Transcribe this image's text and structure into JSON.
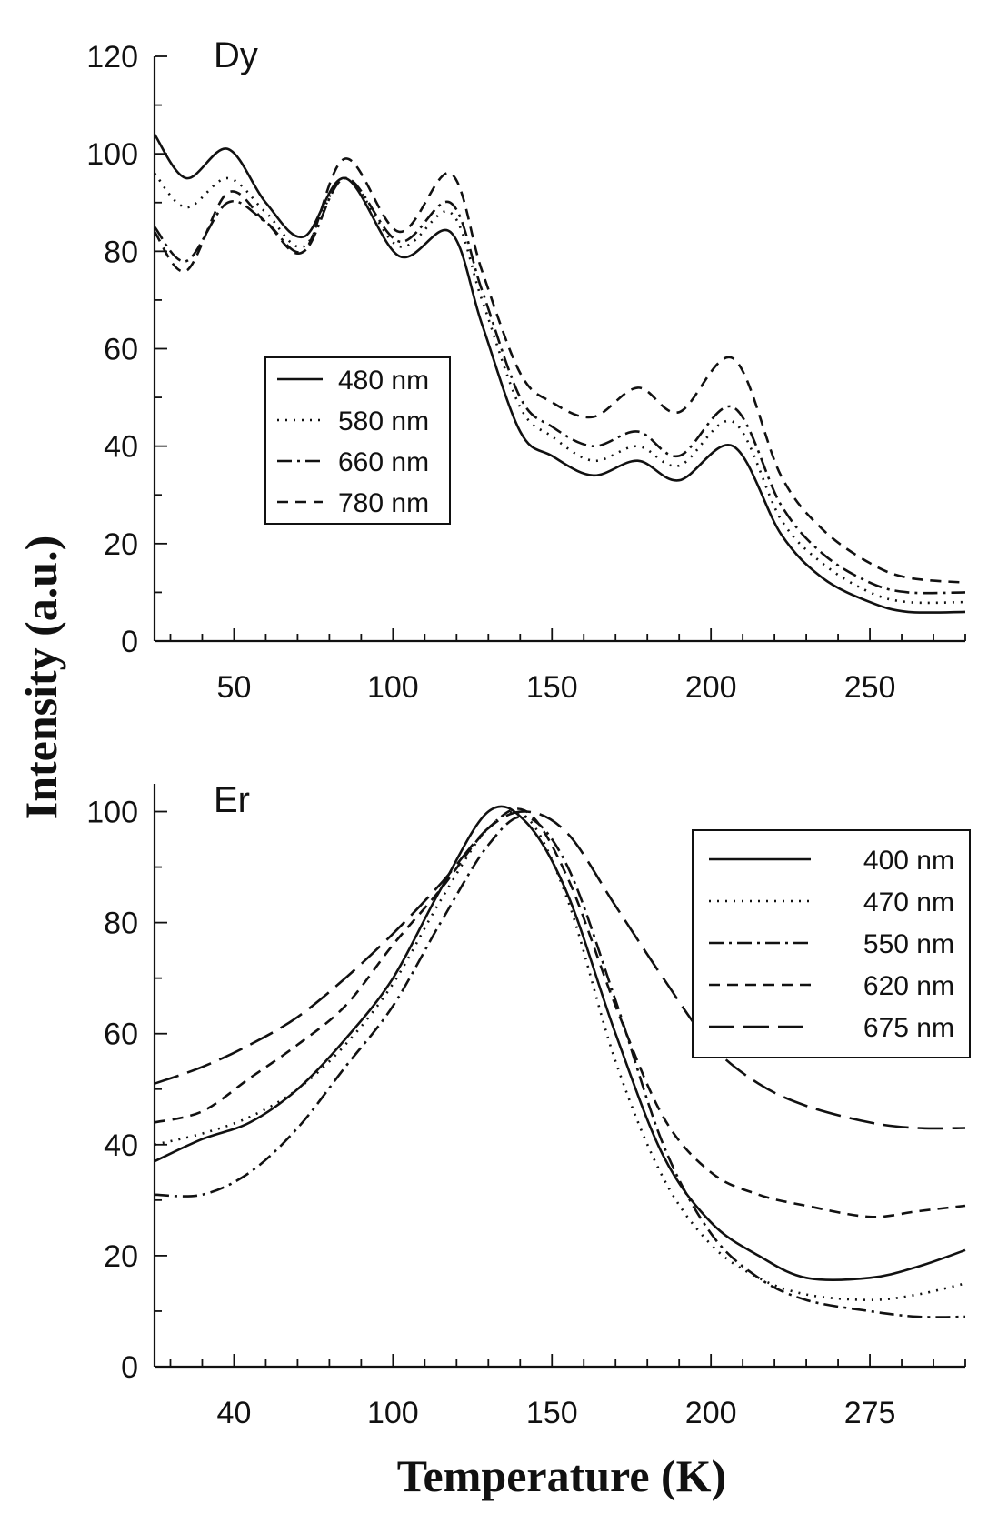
{
  "figure": {
    "ylabel": "Intensity (a.u.)",
    "xlabel": "Temperature (K)"
  },
  "chart_data": [
    {
      "type": "line",
      "title": "Dy",
      "xlabel": "Temperature (K)",
      "ylabel": "Intensity (a.u.)",
      "xlim": [
        25,
        280
      ],
      "ylim": [
        0,
        120
      ],
      "x_ticks": [
        "50",
        "100",
        "150",
        "200",
        "250"
      ],
      "y_ticks": [
        "0",
        "20",
        "40",
        "60",
        "80",
        "100",
        "120"
      ],
      "legend_position": "center-left",
      "series": [
        {
          "name": "480 nm",
          "dash": "solid",
          "x": [
            25,
            35,
            48,
            60,
            72,
            85,
            102,
            118,
            128,
            140,
            150,
            163,
            177,
            190,
            207,
            222,
            235,
            250,
            262,
            280
          ],
          "y": [
            104,
            95,
            101,
            90,
            83,
            95,
            79,
            84,
            65,
            43,
            38,
            34,
            37,
            33,
            40,
            22,
            13,
            8,
            6,
            6
          ]
        },
        {
          "name": "580 nm",
          "dash": "dotted",
          "x": [
            25,
            35,
            48,
            60,
            72,
            85,
            102,
            118,
            128,
            140,
            150,
            163,
            177,
            190,
            207,
            222,
            235,
            250,
            262,
            280
          ],
          "y": [
            96,
            89,
            95,
            88,
            81,
            95,
            81,
            88,
            70,
            48,
            42,
            37,
            40,
            36,
            45,
            25,
            16,
            10,
            8,
            8
          ]
        },
        {
          "name": "660 nm",
          "dash": "dash-dot",
          "x": [
            25,
            35,
            48,
            60,
            72,
            85,
            102,
            118,
            128,
            140,
            150,
            163,
            177,
            190,
            207,
            222,
            235,
            250,
            262,
            280
          ],
          "y": [
            85,
            78,
            90,
            86,
            80,
            95,
            82,
            90,
            72,
            50,
            44,
            40,
            43,
            38,
            48,
            28,
            18,
            12,
            10,
            10
          ]
        },
        {
          "name": "780 nm",
          "dash": "dashed",
          "x": [
            25,
            35,
            48,
            60,
            72,
            85,
            102,
            118,
            128,
            140,
            150,
            163,
            177,
            190,
            207,
            222,
            235,
            250,
            262,
            280
          ],
          "y": [
            84,
            76,
            92,
            86,
            80,
            99,
            84,
            96,
            76,
            55,
            49,
            46,
            52,
            47,
            58,
            34,
            23,
            16,
            13,
            12
          ]
        }
      ]
    },
    {
      "type": "line",
      "title": "Er",
      "xlabel": "Temperature (K)",
      "ylabel": "Intensity (a.u.)",
      "xlim": [
        25,
        280
      ],
      "ylim": [
        0,
        105
      ],
      "x_ticks": [
        "40",
        "100",
        "150",
        "200",
        "275"
      ],
      "y_ticks": [
        "0",
        "20",
        "40",
        "60",
        "80",
        "100"
      ],
      "legend_position": "top-right",
      "series": [
        {
          "name": "400 nm",
          "dash": "solid",
          "x": [
            25,
            40,
            55,
            70,
            85,
            100,
            115,
            130,
            142,
            155,
            170,
            185,
            200,
            215,
            230,
            250,
            265,
            280
          ],
          "y": [
            37,
            41,
            44,
            50,
            59,
            70,
            86,
            100,
            98,
            85,
            60,
            38,
            26,
            20,
            16,
            16,
            18,
            21
          ]
        },
        {
          "name": "470 nm",
          "dash": "dotted",
          "x": [
            25,
            40,
            55,
            70,
            85,
            100,
            115,
            130,
            142,
            155,
            170,
            185,
            200,
            215,
            230,
            250,
            265,
            280
          ],
          "y": [
            40,
            42,
            45,
            50,
            58,
            69,
            84,
            97,
            99,
            84,
            55,
            34,
            22,
            16,
            13,
            12,
            13,
            15
          ]
        },
        {
          "name": "550 nm",
          "dash": "dash-dot",
          "x": [
            25,
            40,
            55,
            70,
            85,
            100,
            115,
            130,
            142,
            155,
            170,
            185,
            200,
            215,
            230,
            250,
            265,
            280
          ],
          "y": [
            31,
            31,
            35,
            43,
            54,
            65,
            80,
            94,
            99,
            90,
            66,
            40,
            24,
            16,
            12,
            10,
            9,
            9
          ]
        },
        {
          "name": "620 nm",
          "dash": "dashed",
          "x": [
            25,
            40,
            55,
            70,
            85,
            100,
            115,
            130,
            142,
            155,
            170,
            185,
            200,
            215,
            230,
            250,
            265,
            280
          ],
          "y": [
            44,
            46,
            52,
            58,
            65,
            76,
            86,
            97,
            100,
            88,
            65,
            45,
            35,
            31,
            29,
            27,
            28,
            29
          ]
        },
        {
          "name": "675 nm",
          "dash": "long-dash",
          "x": [
            25,
            40,
            55,
            70,
            85,
            100,
            115,
            130,
            142,
            155,
            170,
            185,
            200,
            215,
            230,
            250,
            265,
            280
          ],
          "y": [
            51,
            54,
            58,
            63,
            70,
            78,
            87,
            97,
            100,
            96,
            83,
            70,
            58,
            51,
            47,
            44,
            43,
            43
          ]
        }
      ]
    }
  ]
}
